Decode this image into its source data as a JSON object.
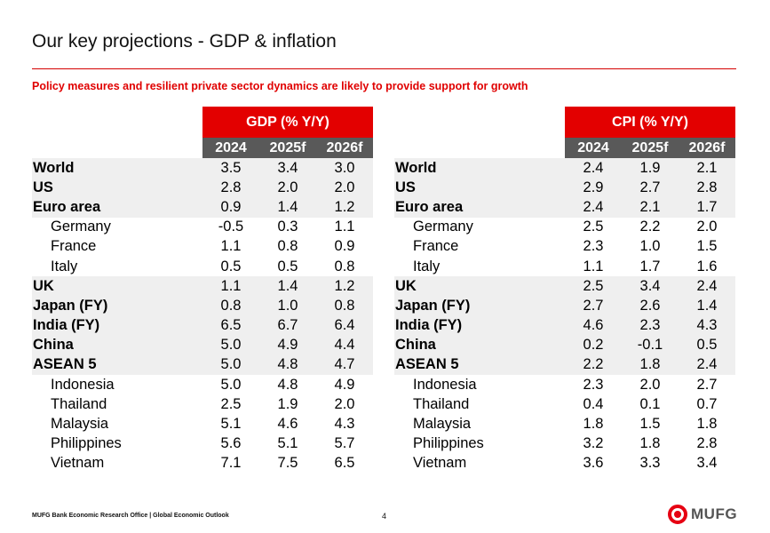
{
  "header": {
    "title": "Our key projections - GDP & inflation",
    "subtitle": "Policy measures and resilient private sector dynamics are likely to provide support for growth"
  },
  "gdp_table": {
    "title": "GDP (% Y/Y)",
    "years": [
      "2024",
      "2025f",
      "2026f"
    ],
    "rows": [
      {
        "label": "World",
        "values": [
          "3.5",
          "3.4",
          "3.0"
        ]
      },
      {
        "label": "US",
        "values": [
          "2.8",
          "2.0",
          "2.0"
        ]
      },
      {
        "label": "Euro area",
        "values": [
          "0.9",
          "1.4",
          "1.2"
        ]
      },
      {
        "label": "Germany",
        "values": [
          "-0.5",
          "0.3",
          "1.1"
        ]
      },
      {
        "label": "France",
        "values": [
          "1.1",
          "0.8",
          "0.9"
        ]
      },
      {
        "label": "Italy",
        "values": [
          "0.5",
          "0.5",
          "0.8"
        ]
      },
      {
        "label": "UK",
        "values": [
          "1.1",
          "1.4",
          "1.2"
        ]
      },
      {
        "label": "Japan (FY)",
        "values": [
          "0.8",
          "1.0",
          "0.8"
        ]
      },
      {
        "label": "India (FY)",
        "values": [
          "6.5",
          "6.7",
          "6.4"
        ]
      },
      {
        "label": "China",
        "values": [
          "5.0",
          "4.9",
          "4.4"
        ]
      },
      {
        "label": "ASEAN 5",
        "values": [
          "5.0",
          "4.8",
          "4.7"
        ]
      },
      {
        "label": "Indonesia",
        "values": [
          "5.0",
          "4.8",
          "4.9"
        ]
      },
      {
        "label": "Thailand",
        "values": [
          "2.5",
          "1.9",
          "2.0"
        ]
      },
      {
        "label": "Malaysia",
        "values": [
          "5.1",
          "4.6",
          "4.3"
        ]
      },
      {
        "label": "Philippines",
        "values": [
          "5.6",
          "5.1",
          "5.7"
        ]
      },
      {
        "label": "Vietnam",
        "values": [
          "7.1",
          "7.5",
          "6.5"
        ]
      }
    ]
  },
  "cpi_table": {
    "title": "CPI (% Y/Y)",
    "years": [
      "2024",
      "2025f",
      "2026f"
    ],
    "rows": [
      {
        "label": "World",
        "values": [
          "2.4",
          "1.9",
          "2.1"
        ]
      },
      {
        "label": "US",
        "values": [
          "2.9",
          "2.7",
          "2.8"
        ]
      },
      {
        "label": "Euro area",
        "values": [
          "2.4",
          "2.1",
          "1.7"
        ]
      },
      {
        "label": "Germany",
        "values": [
          "2.5",
          "2.2",
          "2.0"
        ]
      },
      {
        "label": "France",
        "values": [
          "2.3",
          "1.0",
          "1.5"
        ]
      },
      {
        "label": "Italy",
        "values": [
          "1.1",
          "1.7",
          "1.6"
        ]
      },
      {
        "label": "UK",
        "values": [
          "2.5",
          "3.4",
          "2.4"
        ]
      },
      {
        "label": "Japan (FY)",
        "values": [
          "2.7",
          "2.6",
          "1.4"
        ]
      },
      {
        "label": "India (FY)",
        "values": [
          "4.6",
          "2.3",
          "4.3"
        ]
      },
      {
        "label": "China",
        "values": [
          "0.2",
          "-0.1",
          "0.5"
        ]
      },
      {
        "label": "ASEAN 5",
        "values": [
          "2.2",
          "1.8",
          "2.4"
        ]
      },
      {
        "label": "Indonesia",
        "values": [
          "2.3",
          "2.0",
          "2.7"
        ]
      },
      {
        "label": "Thailand",
        "values": [
          "0.4",
          "0.1",
          "0.7"
        ]
      },
      {
        "label": "Malaysia",
        "values": [
          "1.8",
          "1.5",
          "1.8"
        ]
      },
      {
        "label": "Philippines",
        "values": [
          "3.2",
          "1.8",
          "2.8"
        ]
      },
      {
        "label": "Vietnam",
        "values": [
          "3.6",
          "3.3",
          "3.4"
        ]
      }
    ]
  },
  "footer": {
    "source": "MUFG Bank Economic Research Office  |  Global Economic Outlook",
    "page_number": "4",
    "logo_text": "MUFG"
  },
  "colors": {
    "accent_red": "#e30000",
    "year_header_gray": "#595959",
    "band_gray": "#efefef"
  }
}
